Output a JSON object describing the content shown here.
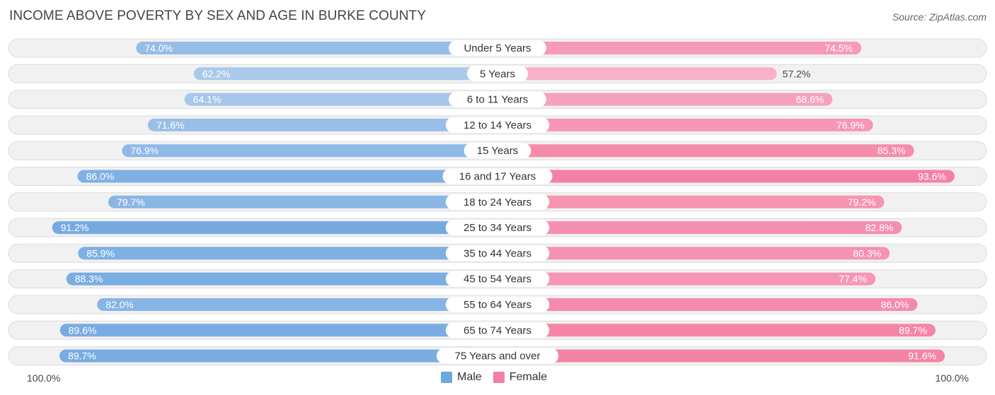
{
  "title": "INCOME ABOVE POVERTY BY SEX AND AGE IN BURKE COUNTY",
  "source": "Source: ZipAtlas.com",
  "colors": {
    "male": "#6ea6e0",
    "female": "#f47fa3",
    "male_light": "#b7d1ee",
    "female_light": "#f8b4ca",
    "row_bg": "#f1f1f1",
    "row_border": "#dcdcdc"
  },
  "axis": {
    "left_label": "100.0%",
    "right_label": "100.0%"
  },
  "legend": {
    "male": "Male",
    "female": "Female"
  },
  "chart_data": {
    "type": "bar",
    "orientation": "horizontal-diverging",
    "categories": [
      "Under 5 Years",
      "5 Years",
      "6 to 11 Years",
      "12 to 14 Years",
      "15 Years",
      "16 and 17 Years",
      "18 to 24 Years",
      "25 to 34 Years",
      "35 to 44 Years",
      "45 to 54 Years",
      "55 to 64 Years",
      "65 to 74 Years",
      "75 Years and over"
    ],
    "series": [
      {
        "name": "Male",
        "values": [
          74.0,
          62.2,
          64.1,
          71.6,
          76.9,
          86.0,
          79.7,
          91.2,
          85.9,
          88.3,
          82.0,
          89.6,
          89.7
        ]
      },
      {
        "name": "Female",
        "values": [
          74.5,
          57.2,
          68.6,
          76.9,
          85.3,
          93.6,
          79.2,
          82.8,
          80.3,
          77.4,
          86.0,
          89.7,
          91.6
        ]
      }
    ],
    "value_labels_male": [
      "74.0%",
      "62.2%",
      "64.1%",
      "71.6%",
      "76.9%",
      "86.0%",
      "79.7%",
      "91.2%",
      "85.9%",
      "88.3%",
      "82.0%",
      "89.6%",
      "89.7%"
    ],
    "value_labels_female": [
      "74.5%",
      "57.2%",
      "68.6%",
      "76.9%",
      "85.3%",
      "93.6%",
      "79.2%",
      "82.8%",
      "80.3%",
      "77.4%",
      "86.0%",
      "89.7%",
      "91.6%"
    ],
    "xlim": [
      0,
      100
    ],
    "legend_position": "bottom-center"
  }
}
